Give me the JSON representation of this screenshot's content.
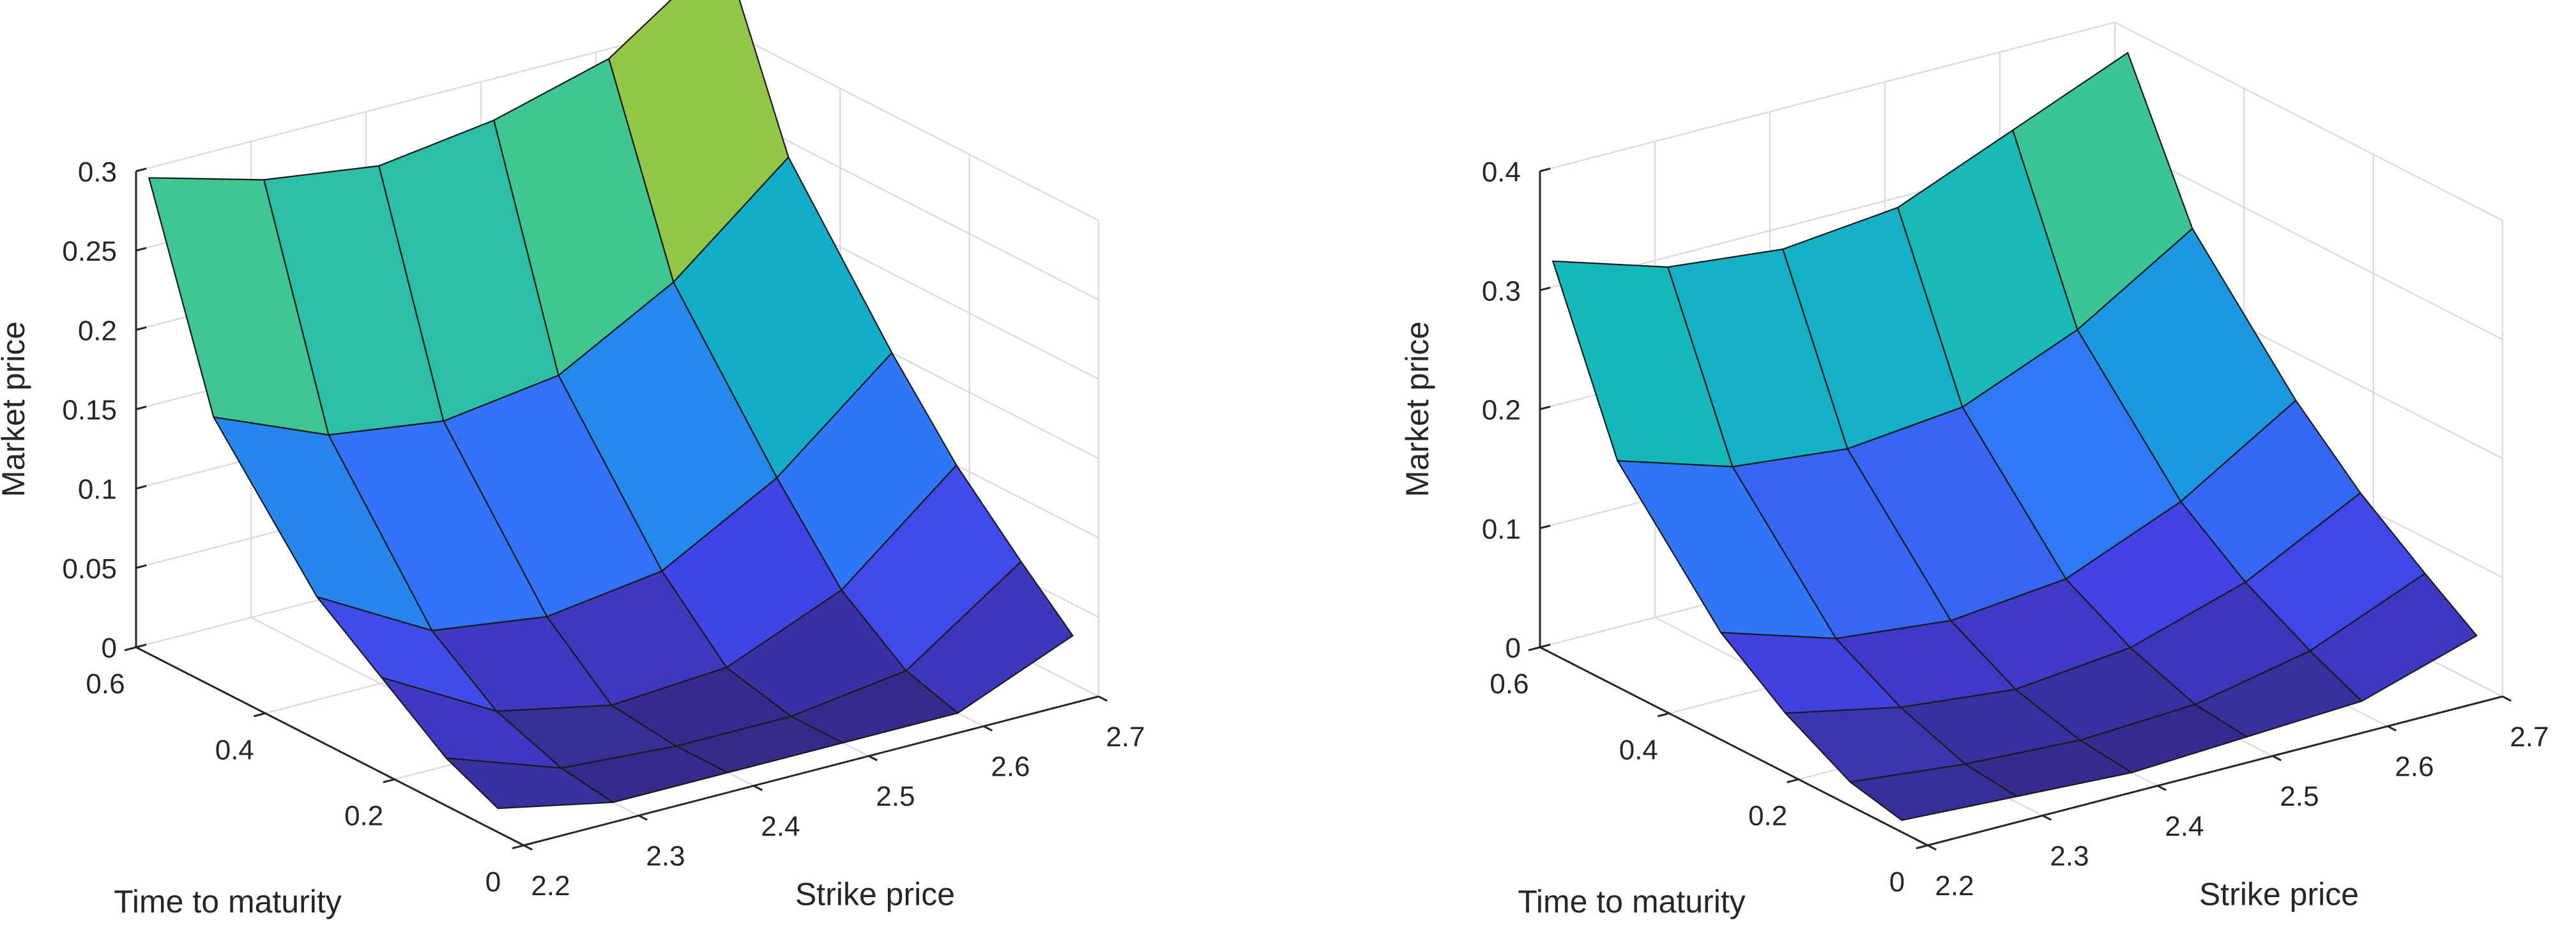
{
  "chart_data": [
    {
      "type": "surface",
      "title": "",
      "xlabel": "Strike price",
      "ylabel": "Time to maturity",
      "zlabel": "Market price",
      "xlim": [
        2.2,
        2.7
      ],
      "ylim": [
        0,
        0.6
      ],
      "zlim": [
        0,
        0.3
      ],
      "xticks": [
        "2.2",
        "2.3",
        "2.4",
        "2.5",
        "2.6",
        "2.7"
      ],
      "yticks": [
        "0",
        "0.2",
        "0.4",
        "0.6"
      ],
      "zticks": [
        "0",
        "0.05",
        "0.1",
        "0.15",
        "0.2",
        "0.25",
        "0.3"
      ],
      "grid": true,
      "colormap": "parula",
      "strike": [
        2.2,
        2.3,
        2.4,
        2.5,
        2.6,
        2.7
      ],
      "maturity": [
        0.04,
        0.12,
        0.22,
        0.32,
        0.48,
        0.58
      ],
      "price": [
        [
          0.015,
          0.0,
          0.0,
          0.0,
          0.0,
          0.03
        ],
        [
          0.03,
          0.005,
          0.0,
          0.0,
          0.01,
          0.06
        ],
        [
          0.06,
          0.02,
          0.005,
          0.01,
          0.04,
          0.1
        ],
        [
          0.09,
          0.05,
          0.04,
          0.05,
          0.09,
          0.15
        ],
        [
          0.17,
          0.14,
          0.13,
          0.14,
          0.18,
          0.24
        ],
        [
          0.3,
          0.28,
          0.27,
          0.28,
          0.3,
          0.35
        ]
      ]
    },
    {
      "type": "surface",
      "title": "",
      "xlabel": "Strike price",
      "ylabel": "Time to maturity",
      "zlabel": "Market price",
      "xlim": [
        2.2,
        2.7
      ],
      "ylim": [
        0,
        0.6
      ],
      "zlim": [
        0,
        0.4
      ],
      "xticks": [
        "2.2",
        "2.3",
        "2.4",
        "2.5",
        "2.6",
        "2.7"
      ],
      "yticks": [
        "0",
        "0.2",
        "0.4",
        "0.6"
      ],
      "zticks": [
        "0",
        "0.1",
        "0.2",
        "0.3",
        "0.4"
      ],
      "grid": true,
      "colormap": "parula",
      "strike": [
        2.2,
        2.3,
        2.4,
        2.5,
        2.6,
        2.7
      ],
      "maturity": [
        0.04,
        0.12,
        0.22,
        0.32,
        0.48,
        0.58
      ],
      "price": [
        [
          0.01,
          0.005,
          0.0,
          0.005,
          0.01,
          0.04
        ],
        [
          0.02,
          0.01,
          0.005,
          0.01,
          0.03,
          0.07
        ],
        [
          0.05,
          0.03,
          0.02,
          0.03,
          0.06,
          0.11
        ],
        [
          0.09,
          0.06,
          0.05,
          0.06,
          0.1,
          0.16
        ],
        [
          0.19,
          0.16,
          0.15,
          0.16,
          0.2,
          0.26
        ],
        [
          0.33,
          0.3,
          0.29,
          0.3,
          0.34,
          0.38
        ]
      ]
    }
  ]
}
